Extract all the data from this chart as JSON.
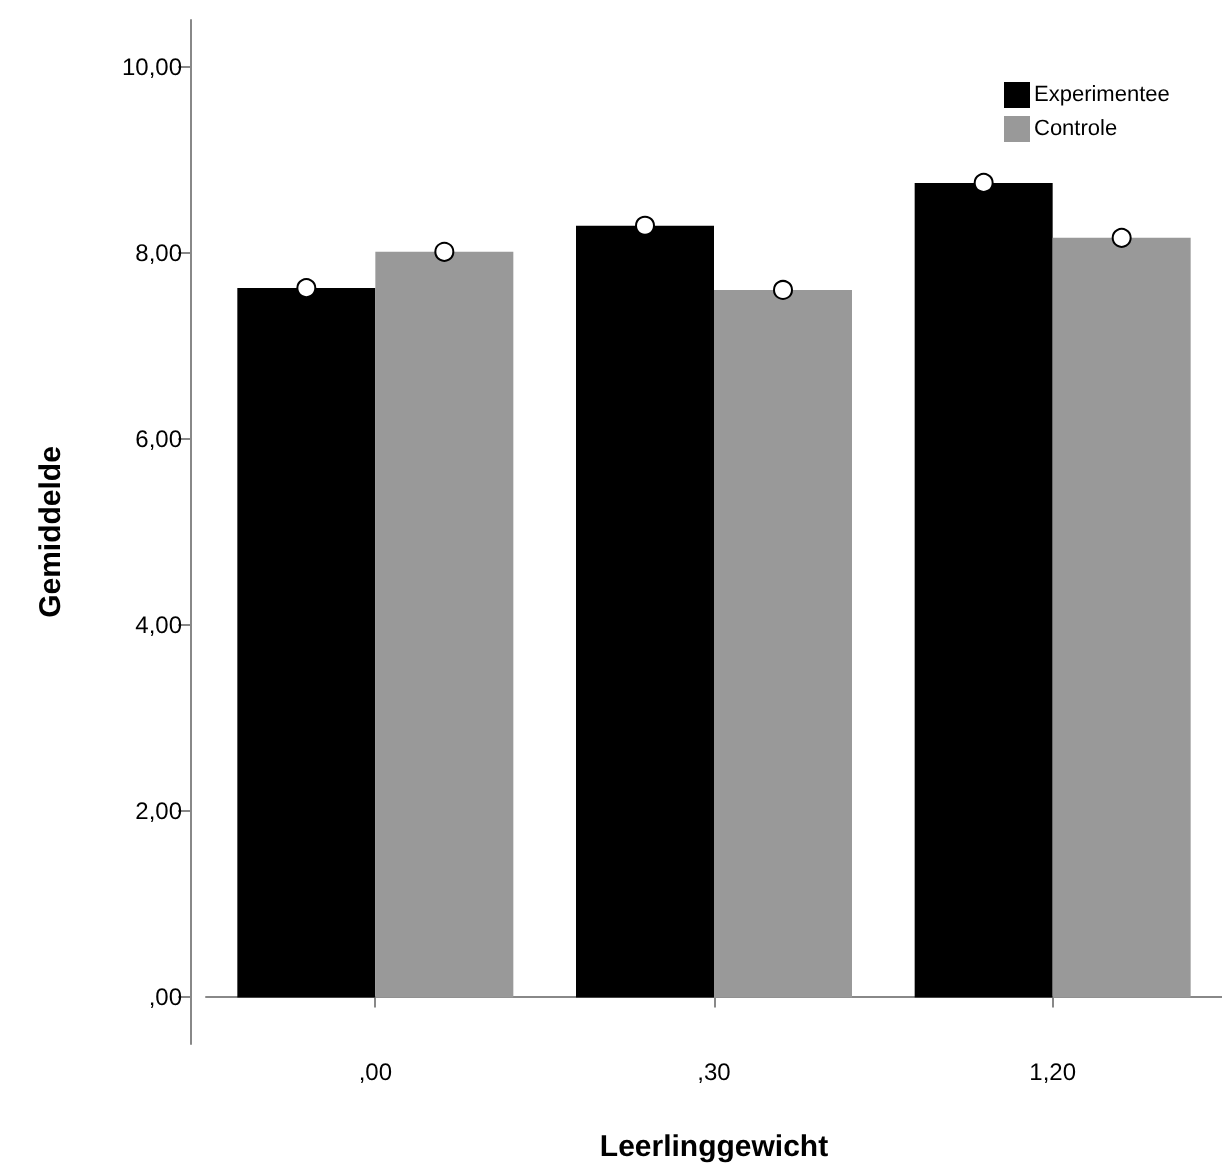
{
  "chart_data": {
    "type": "bar",
    "xlabel": "Leerlinggewicht",
    "ylabel": "Gemiddelde",
    "categories": [
      ",00",
      ",30",
      "1,20"
    ],
    "series": [
      {
        "name": "Experimentee",
        "color": "#000000",
        "values": [
          7.62,
          8.29,
          8.75
        ]
      },
      {
        "name": "Controle",
        "color": "#999999",
        "values": [
          8.01,
          7.6,
          8.16
        ]
      },
      {
        "type": "scatter",
        "color": "#ffffff",
        "x": [
          ",00",
          ",30",
          "1,20"
        ],
        "values": [
          7.62,
          8.29,
          8.75
        ]
      },
      {
        "type": "scatter",
        "color": "#ffffff",
        "x": [
          ",00",
          ",30",
          "1,20"
        ],
        "values": [
          8.01,
          7.6,
          8.16
        ]
      }
    ],
    "ylim": [
      -0.5,
      10.5
    ],
    "yticks": [
      {
        "value": 0,
        "label": ",00"
      },
      {
        "value": 2,
        "label": "2,00"
      },
      {
        "value": 4,
        "label": "4,00"
      },
      {
        "value": 6,
        "label": "6,00"
      },
      {
        "value": 8,
        "label": "8,00"
      },
      {
        "value": 10,
        "label": "10,00"
      }
    ],
    "marker": "circle",
    "legend": "top right",
    "grid": false
  }
}
